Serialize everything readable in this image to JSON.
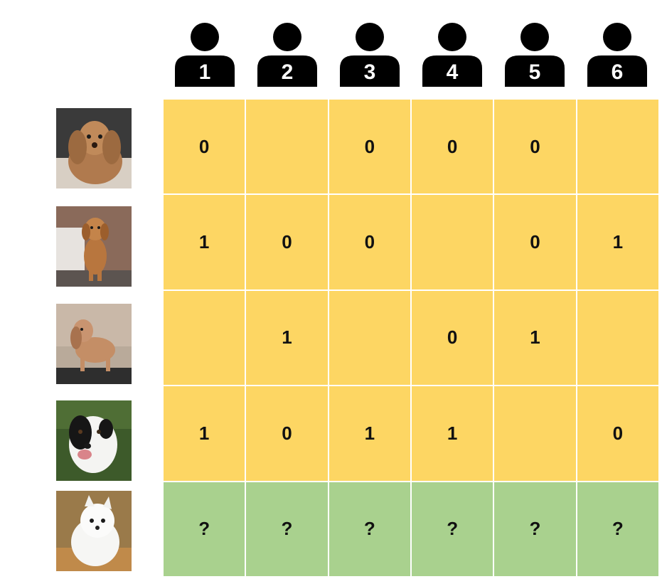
{
  "colors": {
    "labeled_cell": "#fdd663",
    "query_cell": "#a9d18e",
    "annotator_icon": "#000000"
  },
  "annotators": [
    {
      "label": "1",
      "icon": "person-icon"
    },
    {
      "label": "2",
      "icon": "person-icon"
    },
    {
      "label": "3",
      "icon": "person-icon"
    },
    {
      "label": "4",
      "icon": "person-icon"
    },
    {
      "label": "5",
      "icon": "person-icon"
    },
    {
      "label": "6",
      "icon": "person-icon"
    }
  ],
  "images": [
    {
      "icon": "cocker-spaniel-photo"
    },
    {
      "icon": "golden-retriever-puppy-photo"
    },
    {
      "icon": "spaniel-on-table-photo"
    },
    {
      "icon": "black-white-dog-photo"
    },
    {
      "icon": "white-fluffy-puppy-photo"
    }
  ],
  "matrix": [
    [
      "0",
      "",
      "0",
      "0",
      "0",
      ""
    ],
    [
      "1",
      "0",
      "0",
      "",
      "0",
      "1"
    ],
    [
      "",
      "1",
      "",
      "0",
      "1",
      ""
    ],
    [
      "1",
      "0",
      "1",
      "1",
      "",
      "0"
    ],
    [
      "?",
      "?",
      "?",
      "?",
      "?",
      "?"
    ]
  ],
  "query_row_index": 4
}
